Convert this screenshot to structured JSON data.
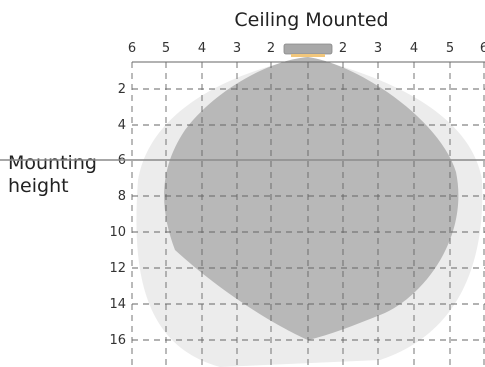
{
  "title": "Ceiling Mounted",
  "side_label": {
    "line1": "Mounting",
    "line2": "height"
  },
  "horizontal_ticks": [
    "6",
    "5",
    "4",
    "3",
    "2",
    "",
    "2",
    "3",
    "4",
    "5",
    "6"
  ],
  "vertical_ticks": [
    "2",
    "4",
    "6",
    "8",
    "10",
    "12",
    "14",
    "16"
  ],
  "mounting_height": 6,
  "colors": {
    "inner_zone": "#b8b8b8",
    "outer_zone": "#ececec",
    "grid": "#666666",
    "mount_line": "#8a8a8a",
    "fixture": "#a8a8a8",
    "fixture_light": "#f2c77c"
  },
  "icons": {
    "fixture": "ceiling-fixture-icon"
  }
}
